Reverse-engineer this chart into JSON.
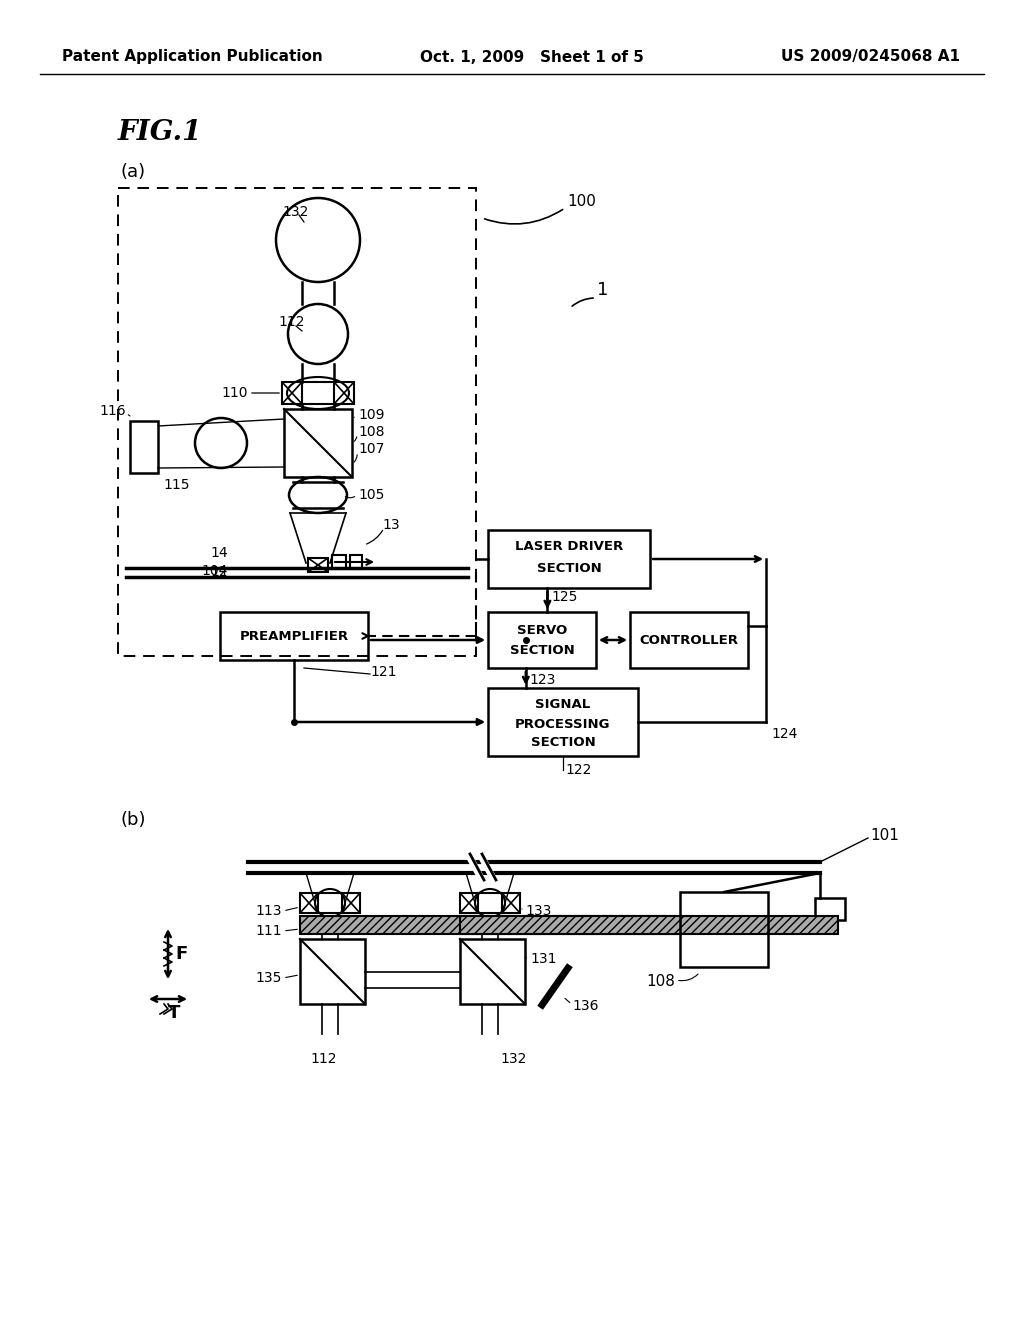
{
  "title_left": "Patent Application Publication",
  "title_center": "Oct. 1, 2009   Sheet 1 of 5",
  "title_right": "US 2009/0245068 A1",
  "bg_color": "#ffffff",
  "line_color": "#000000"
}
